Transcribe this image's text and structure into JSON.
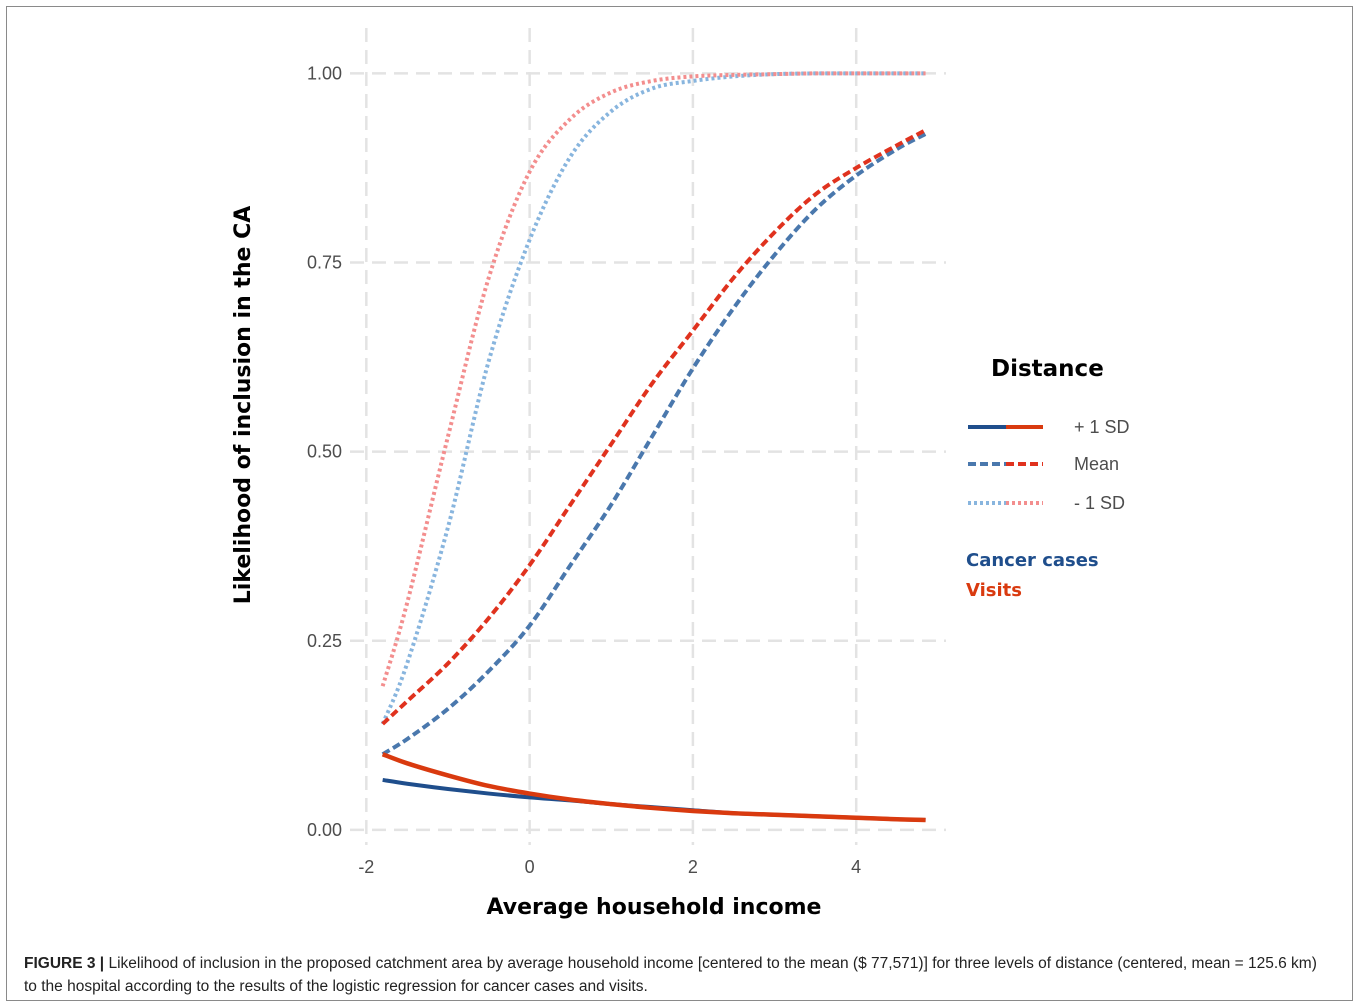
{
  "colors": {
    "cancer_solid": "#1f4e8c",
    "cancer_mean": "#4a78ad",
    "cancer_minus": "#88b5de",
    "visits_solid": "#d93a0f",
    "visits_mean": "#e0321e",
    "visits_minus": "#f38e8e",
    "grid": "#e3e3e3"
  },
  "legend": {
    "title": "Distance",
    "items": [
      {
        "label": "+ 1 SD",
        "style": "solid"
      },
      {
        "label": "Mean",
        "style": "dashed"
      },
      {
        "label": "- 1 SD",
        "style": "dotted"
      }
    ],
    "groups": [
      {
        "label": "Cancer cases",
        "color": "#1f4e8c"
      },
      {
        "label": "Visits",
        "color": "#d93a0f"
      }
    ]
  },
  "caption": {
    "label": "FIGURE 3 |",
    "text": "Likelihood of inclusion in the proposed catchment area by average household income [centered to the mean ($ 77,571)] for three levels of distance (centered, mean = 125.6 km) to the hospital according to the results of the logistic regression for cancer cases and visits."
  },
  "chart_data": {
    "type": "line",
    "title": "",
    "xlabel": "Average household income",
    "ylabel": "Likelihood of inclusion in the CA",
    "xlim": [
      -2.2,
      5.1
    ],
    "ylim": [
      -0.02,
      1.06
    ],
    "x_ticks": [
      -2,
      0,
      2,
      4
    ],
    "x_tick_labels": [
      "-2",
      "0",
      "2",
      "4"
    ],
    "y_ticks": [
      0,
      0.25,
      0.5,
      0.75,
      1.0
    ],
    "y_tick_labels": [
      "0.00",
      "0.25",
      "0.50",
      "0.75",
      "1.00"
    ],
    "grid": true,
    "legend_position": "right",
    "series": [
      {
        "name": "Cancer cases - 1 SD",
        "group": "Cancer cases",
        "style": "dotted",
        "x": [
          -1.8,
          -1.5,
          -1.0,
          -0.5,
          0.0,
          0.5,
          1.0,
          1.5,
          2.0,
          2.5,
          3.0,
          3.5,
          4.0,
          4.5,
          4.85
        ],
        "y": [
          0.14,
          0.22,
          0.4,
          0.62,
          0.78,
          0.89,
          0.95,
          0.98,
          0.99,
          0.996,
          0.999,
          1.0,
          1.0,
          1.0,
          1.0
        ]
      },
      {
        "name": "Visits - 1 SD",
        "group": "Visits",
        "style": "dotted",
        "x": [
          -1.8,
          -1.5,
          -1.0,
          -0.5,
          0.0,
          0.5,
          1.0,
          1.5,
          2.0,
          2.5,
          3.0,
          3.5,
          4.0,
          4.5,
          4.85
        ],
        "y": [
          0.19,
          0.3,
          0.52,
          0.73,
          0.87,
          0.94,
          0.975,
          0.99,
          0.996,
          0.998,
          0.999,
          1.0,
          1.0,
          1.0,
          1.0
        ]
      },
      {
        "name": "Cancer cases Mean",
        "group": "Cancer cases",
        "style": "dashed",
        "x": [
          -1.8,
          -1.5,
          -1.0,
          -0.5,
          0.0,
          0.5,
          1.0,
          1.5,
          2.0,
          2.5,
          3.0,
          3.5,
          4.0,
          4.5,
          4.85
        ],
        "y": [
          0.1,
          0.12,
          0.16,
          0.21,
          0.27,
          0.35,
          0.43,
          0.52,
          0.61,
          0.69,
          0.76,
          0.82,
          0.865,
          0.9,
          0.92
        ]
      },
      {
        "name": "Visits Mean",
        "group": "Visits",
        "style": "dashed",
        "x": [
          -1.8,
          -1.5,
          -1.0,
          -0.5,
          0.0,
          0.5,
          1.0,
          1.5,
          2.0,
          2.5,
          3.0,
          3.5,
          4.0,
          4.5,
          4.85
        ],
        "y": [
          0.14,
          0.17,
          0.22,
          0.28,
          0.35,
          0.43,
          0.51,
          0.59,
          0.66,
          0.73,
          0.79,
          0.84,
          0.875,
          0.905,
          0.925
        ]
      },
      {
        "name": "Cancer cases + 1 SD",
        "group": "Cancer cases",
        "style": "solid",
        "x": [
          -1.8,
          -1.5,
          -1.0,
          -0.5,
          0.0,
          0.5,
          1.0,
          1.5,
          2.0,
          2.5,
          3.0,
          3.5,
          4.0,
          4.5,
          4.85
        ],
        "y": [
          0.066,
          0.061,
          0.054,
          0.048,
          0.043,
          0.039,
          0.034,
          0.03,
          0.026,
          0.022,
          0.02,
          0.018,
          0.016,
          0.014,
          0.013
        ]
      },
      {
        "name": "Visits + 1 SD",
        "group": "Visits",
        "style": "solid",
        "x": [
          -1.8,
          -1.5,
          -1.0,
          -0.5,
          0.0,
          0.5,
          1.0,
          1.5,
          2.0,
          2.5,
          3.0,
          3.5,
          4.0,
          4.5,
          4.85
        ],
        "y": [
          0.1,
          0.088,
          0.072,
          0.058,
          0.048,
          0.04,
          0.034,
          0.029,
          0.025,
          0.022,
          0.02,
          0.018,
          0.016,
          0.014,
          0.013
        ]
      }
    ]
  }
}
